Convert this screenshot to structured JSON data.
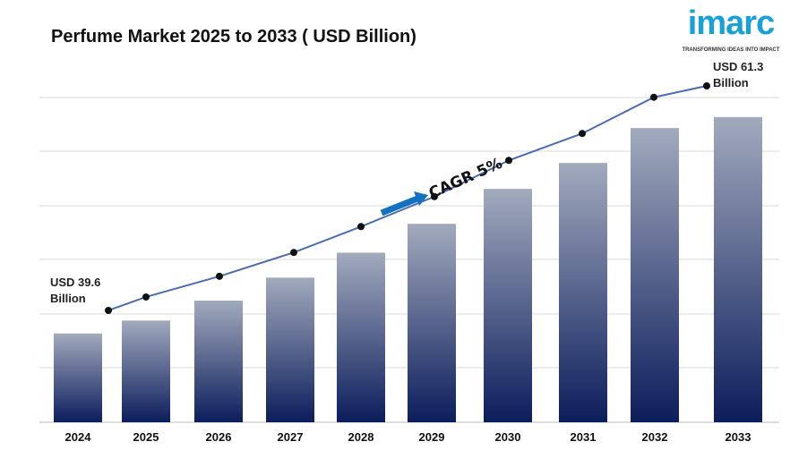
{
  "chart_data": {
    "type": "bar",
    "title": "Perfume Market 2025 to 2033 ( USD Billion)",
    "categories": [
      "2024",
      "2025",
      "2026",
      "2027",
      "2028",
      "2029",
      "2030",
      "2031",
      "2032",
      "2033"
    ],
    "values": [
      39.6,
      40.9,
      42.9,
      45.2,
      47.7,
      50.6,
      54.1,
      56.7,
      60.2,
      61.3
    ],
    "trend_line": true,
    "annotations": {
      "start_label": [
        "USD 39.6",
        "Billion"
      ],
      "end_label": [
        "USD 61.3",
        "Billion"
      ],
      "cagr": "CAGR  5%"
    },
    "grid": true,
    "xlabel": "",
    "ylabel": "",
    "colors": {
      "bar_top": "#a2aabd",
      "bar_bottom": "#0c1d5c",
      "line": "#4a6cb3",
      "arrow": "#1271c0"
    }
  },
  "logo": {
    "word": "imarc",
    "tagline": "TRANSFORMING IDEAS INTO IMPACT"
  }
}
